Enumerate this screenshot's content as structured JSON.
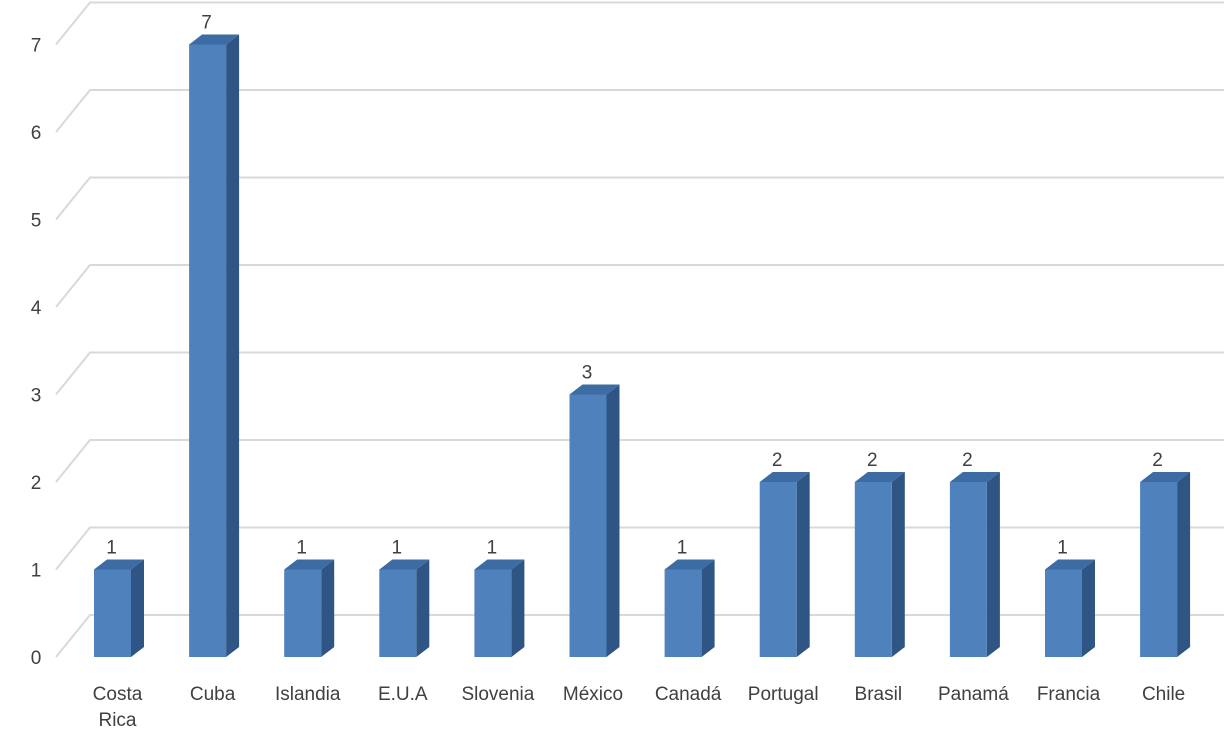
{
  "chart_data": {
    "type": "bar",
    "style": "3d-column",
    "title": "",
    "xlabel": "",
    "ylabel": "",
    "categories": [
      "Costa Rica",
      "Cuba",
      "Islandia",
      "E.U.A",
      "Slovenia",
      "México",
      "Canadá",
      "Portugal",
      "Brasil",
      "Panamá",
      "Francia",
      "Chile"
    ],
    "values": [
      1,
      7,
      1,
      1,
      1,
      3,
      1,
      2,
      2,
      2,
      1,
      2
    ],
    "data_labels": [
      "1",
      "7",
      "1",
      "1",
      "1",
      "3",
      "1",
      "2",
      "2",
      "2",
      "1",
      "2"
    ],
    "yticks": [
      "0",
      "1",
      "2",
      "3",
      "4",
      "5",
      "6",
      "7"
    ],
    "ylim": [
      0,
      7
    ],
    "grid": true,
    "legend": "none",
    "colors": {
      "bar_front": "#4f81bd",
      "bar_side": "#2e5584",
      "bar_top": "#3d6ba3",
      "grid": "#d9d9d9",
      "text": "#404040"
    }
  }
}
